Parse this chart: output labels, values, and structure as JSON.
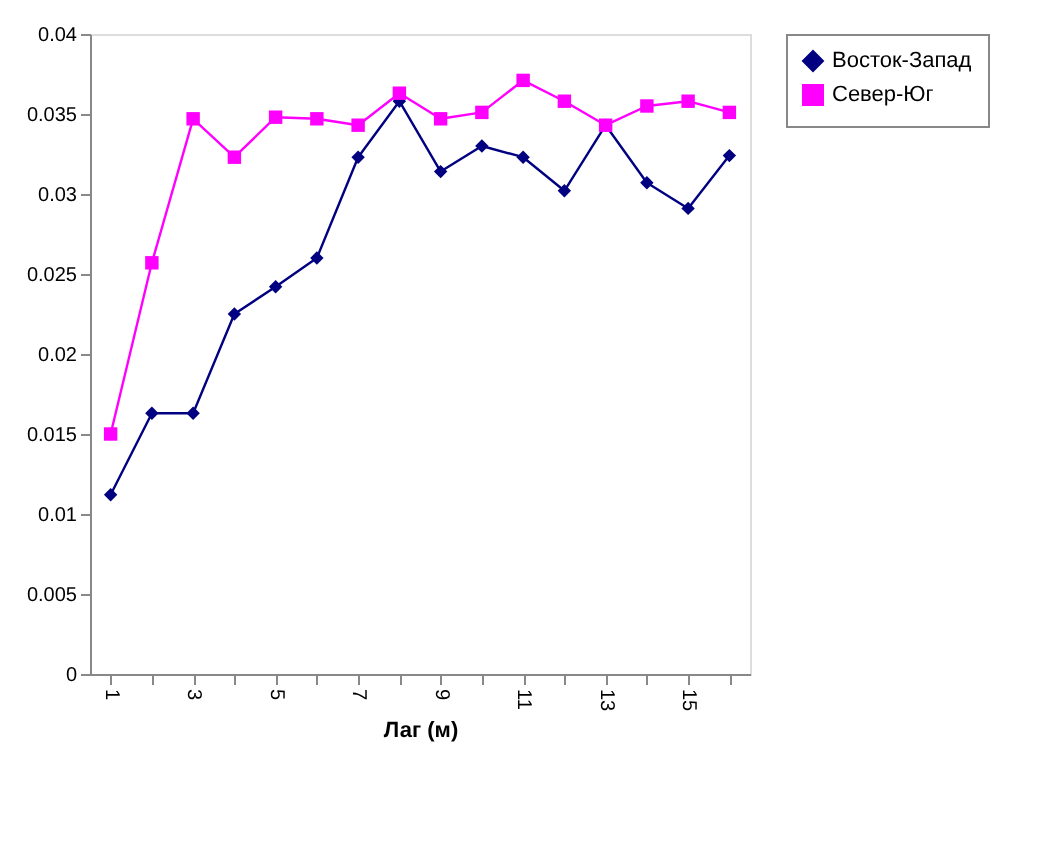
{
  "chart_data": {
    "type": "line",
    "xlabel": "Лаг (м)",
    "categories": [
      "1",
      null,
      "3",
      null,
      "5",
      null,
      "7",
      null,
      "9",
      null,
      "11",
      null,
      "13",
      null,
      "15",
      null
    ],
    "series": [
      {
        "name": "Восток-Запад",
        "color": "#000080",
        "marker": "diamond",
        "values": [
          0.0112,
          0.0163,
          0.0163,
          0.0225,
          0.0242,
          0.026,
          0.0323,
          0.0358,
          0.0314,
          0.033,
          0.0323,
          0.0302,
          0.0343,
          0.0307,
          0.0291,
          0.0324
        ]
      },
      {
        "name": "Север-Юг",
        "color": "#ff00ff",
        "marker": "square",
        "values": [
          0.015,
          0.0257,
          0.0347,
          0.0323,
          0.0348,
          0.0347,
          0.0343,
          0.0363,
          0.0347,
          0.0351,
          0.0371,
          0.0358,
          0.0343,
          0.0355,
          0.0358,
          0.0351
        ]
      }
    ],
    "ylim": [
      0,
      0.04
    ],
    "yticks": [
      0,
      0.005,
      0.01,
      0.015,
      0.02,
      0.025,
      0.03,
      0.035,
      0.04
    ],
    "grid": false,
    "legend": "right"
  }
}
